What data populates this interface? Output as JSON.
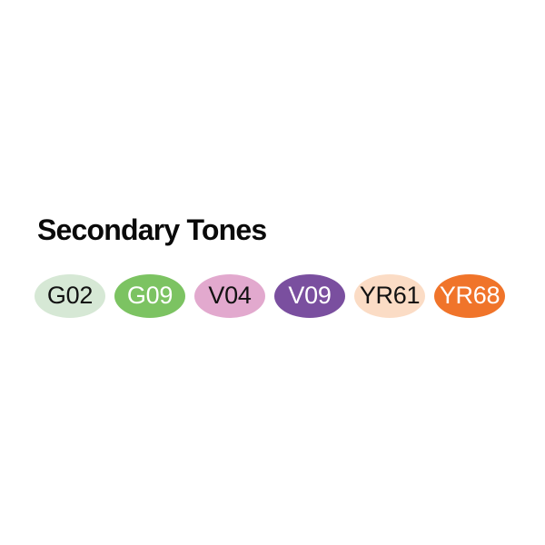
{
  "title": "Secondary Tones",
  "title_color": "#0a0a0a",
  "background_color": "#ffffff",
  "palette": {
    "swatches": [
      {
        "code": "G02",
        "color": "#d6e8d5",
        "text_color": "#121212"
      },
      {
        "code": "G09",
        "color": "#7cc362",
        "text_color": "#ffffff"
      },
      {
        "code": "V04",
        "color": "#e2a9ce",
        "text_color": "#121212"
      },
      {
        "code": "V09",
        "color": "#7a4f9f",
        "text_color": "#ffffff"
      },
      {
        "code": "YR61",
        "color": "#fbdcc5",
        "text_color": "#121212"
      },
      {
        "code": "YR68",
        "color": "#f0742a",
        "text_color": "#ffffff"
      }
    ]
  }
}
